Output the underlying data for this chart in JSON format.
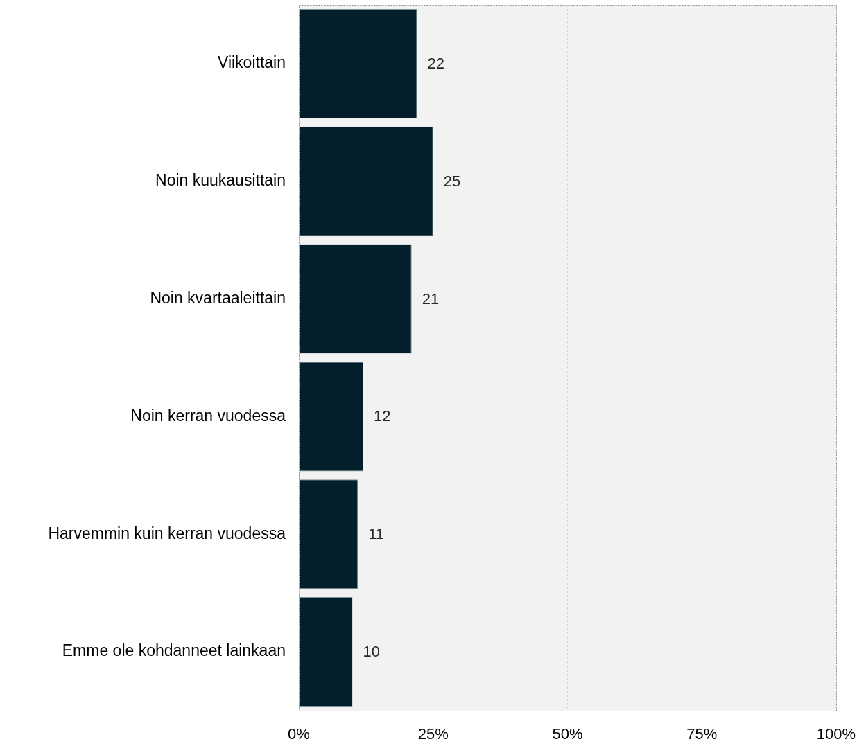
{
  "chart_data": {
    "type": "bar",
    "orientation": "horizontal",
    "categories": [
      "Viikoittain",
      "Noin kuukausittain",
      "Noin kvartaaleittain",
      "Noin kerran vuodessa",
      "Harvemmin kuin kerran vuodessa",
      "Emme ole kohdanneet lainkaan"
    ],
    "values": [
      22,
      25,
      21,
      12,
      11,
      10
    ],
    "color": "#021f2b",
    "xlim": [
      0,
      100
    ],
    "xticks": [
      {
        "value": 0,
        "label": "0%"
      },
      {
        "value": 25,
        "label": "25%"
      },
      {
        "value": 50,
        "label": "50%"
      },
      {
        "value": 75,
        "label": "75%"
      },
      {
        "value": 100,
        "label": "100%"
      }
    ],
    "grid": "x",
    "data_labels": true
  }
}
